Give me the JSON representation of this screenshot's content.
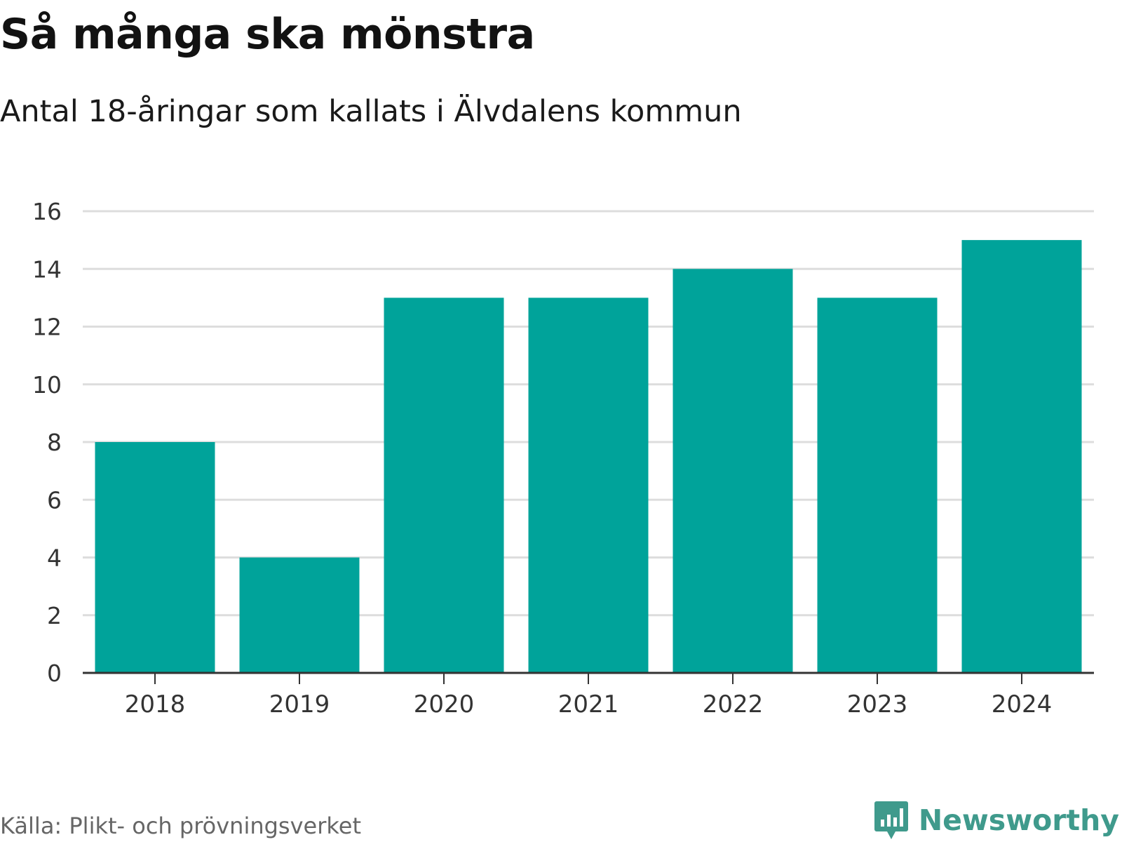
{
  "header": {
    "title": "Så många ska mönstra",
    "subtitle": "Antal 18-åringar som kallats i Älvdalens kommun"
  },
  "chart_data": {
    "type": "bar",
    "title": "Så många ska mönstra",
    "subtitle": "Antal 18-åringar som kallats i Älvdalens kommun",
    "categories": [
      "2018",
      "2019",
      "2020",
      "2021",
      "2022",
      "2023",
      "2024"
    ],
    "values": [
      8,
      4,
      13,
      13,
      14,
      13,
      15
    ],
    "ylim": [
      0,
      16
    ],
    "yticks": [
      0,
      2,
      4,
      6,
      8,
      10,
      12,
      14,
      16
    ],
    "xlabel": "",
    "ylabel": "",
    "grid": true,
    "bar_color": "#00a39a",
    "grid_color": "#dddddd",
    "axis_color": "#333333"
  },
  "footer": {
    "source": "Källa: Plikt- och prövningsverket",
    "brand": "Newsworthy",
    "brand_color": "#3f9a8c",
    "logo_icon": "newsworthy-logo-icon"
  }
}
